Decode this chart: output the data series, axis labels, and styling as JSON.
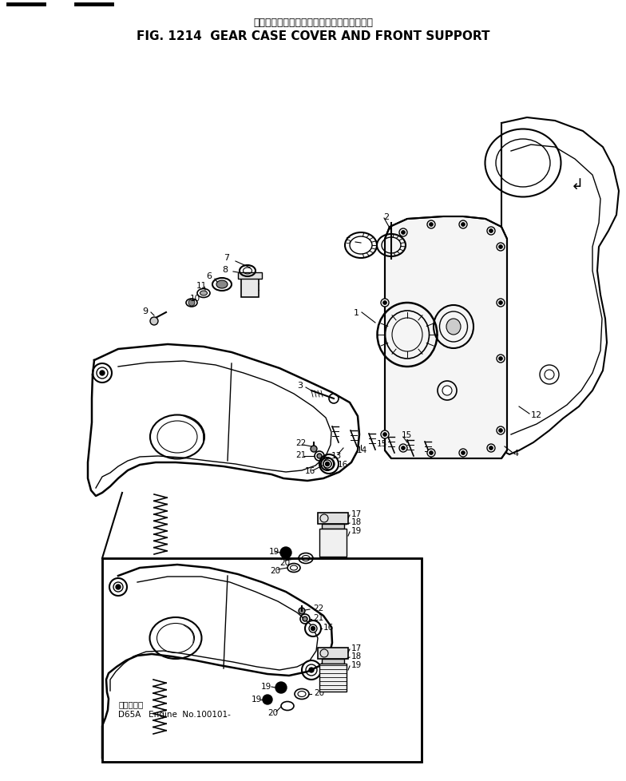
{
  "title_japanese": "ギヤーケースカバーおよびフロントサポート",
  "title_english": "FIG. 1214  GEAR CASE COVER AND FRONT SUPPORT",
  "bg": "#ffffff",
  "lc": "#000000",
  "fig_w": 7.84,
  "fig_h": 9.79,
  "dpi": 100,
  "engine_label1": "機　番　号",
  "engine_label2": "D65A   Engine  No.100101-"
}
